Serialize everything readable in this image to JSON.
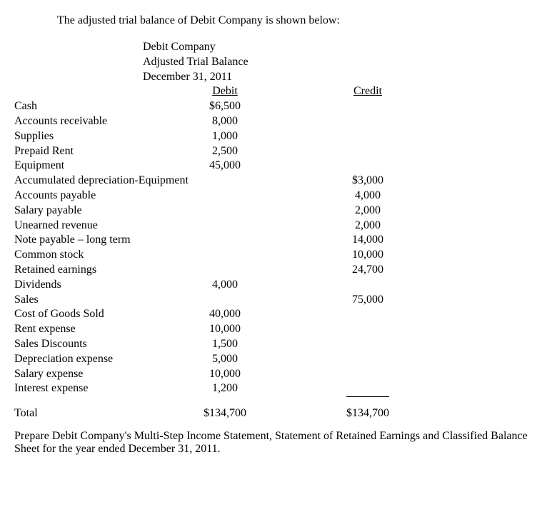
{
  "intro": "The adjusted trial balance of Debit Company is shown below:",
  "header": {
    "company": "Debit Company",
    "title": "Adjusted Trial Balance",
    "date": "December 31, 2011"
  },
  "columns": {
    "debit": "Debit",
    "credit": "Credit"
  },
  "rows": [
    {
      "account": "Cash",
      "debit": "$6,500",
      "credit": ""
    },
    {
      "account": "Accounts receivable",
      "debit": "8,000",
      "credit": ""
    },
    {
      "account": "Supplies",
      "debit": "1,000",
      "credit": ""
    },
    {
      "account": "Prepaid Rent",
      "debit": "2,500",
      "credit": ""
    },
    {
      "account": "Equipment",
      "debit": "45,000",
      "credit": ""
    },
    {
      "account": "Accumulated depreciation-Equipment",
      "debit": "",
      "credit": "$3,000"
    },
    {
      "account": "Accounts payable",
      "debit": "",
      "credit": "4,000"
    },
    {
      "account": "Salary payable",
      "debit": "",
      "credit": "2,000"
    },
    {
      "account": "Unearned revenue",
      "debit": "",
      "credit": "2,000"
    },
    {
      "account": "Note payable – long term",
      "debit": "",
      "credit": "14,000"
    },
    {
      "account": "Common stock",
      "debit": "",
      "credit": "10,000"
    },
    {
      "account": "Retained earnings",
      "debit": "",
      "credit": "24,700"
    },
    {
      "account": "Dividends",
      "debit": "4,000",
      "credit": ""
    },
    {
      "account": "Sales",
      "debit": "",
      "credit": "75,000"
    },
    {
      "account": "Cost of Goods Sold",
      "debit": "40,000",
      "credit": ""
    },
    {
      "account": "Rent expense",
      "debit": "10,000",
      "credit": ""
    },
    {
      "account": "Sales Discounts",
      "debit": "1,500",
      "credit": ""
    },
    {
      "account": "Depreciation expense",
      "debit": "5,000",
      "credit": ""
    },
    {
      "account": "Salary expense",
      "debit": "10,000",
      "credit": ""
    },
    {
      "account": "Interest expense",
      "debit": "1,200",
      "credit": "",
      "underline": true
    }
  ],
  "total": {
    "label": "Total",
    "debit": "$134,700",
    "credit": "$134,700"
  },
  "instruction": "Prepare Debit Company's Multi-Step Income Statement, Statement of Retained Earnings and Classified Balance Sheet for the year ended December 31, 2011.",
  "style": {
    "font_family": "Times New Roman",
    "font_size_pt": 12,
    "text_color": "#000000",
    "background_color": "#ffffff"
  }
}
